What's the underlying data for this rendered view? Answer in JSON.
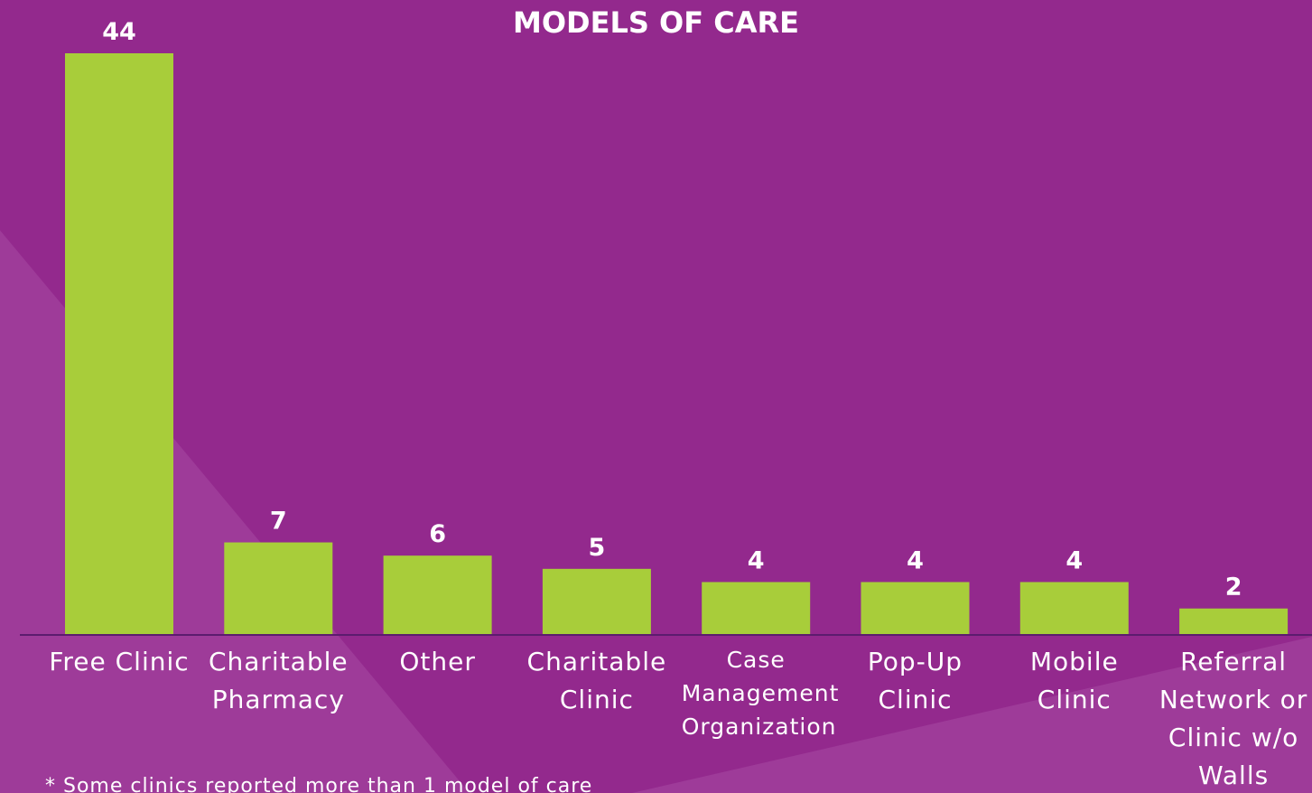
{
  "chart_data": {
    "type": "bar",
    "title": "MODELS OF CARE",
    "categories": [
      "Free Clinic",
      "Charitable Pharmacy",
      "Other",
      "Charitable Clinic",
      "Case Management Organization",
      "Pop-Up Clinic",
      "Mobile Clinic",
      "Referral Network or Clinic w/o Walls"
    ],
    "values": [
      44,
      7,
      6,
      5,
      4,
      4,
      4,
      2
    ],
    "color": "#a8cd3a",
    "ylim": [
      0,
      44
    ],
    "footnote": "* Some clinics reported more than 1 model of care"
  }
}
